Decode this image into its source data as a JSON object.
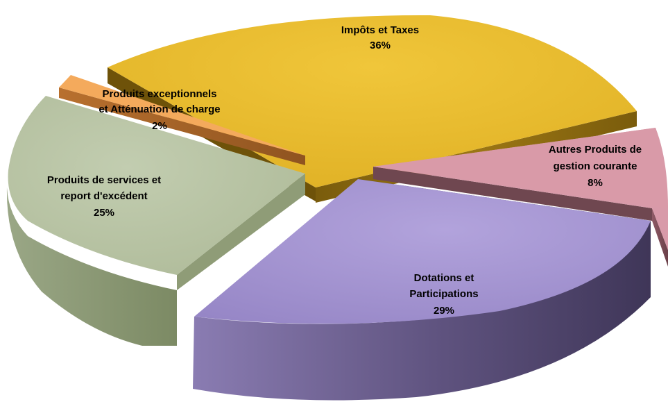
{
  "chart_data": {
    "type": "pie",
    "style": "3d-exploded",
    "slices": [
      {
        "label_lines": [
          "Impôts et Taxes"
        ],
        "percent_label": "36%",
        "value": 36,
        "color": "#e8bc2e",
        "side_color": "#8a6a12"
      },
      {
        "label_lines": [
          "Autres Produits de",
          "gestion courante"
        ],
        "percent_label": "8%",
        "value": 8,
        "color": "#d99aa8",
        "side_color": "#7a4e58"
      },
      {
        "label_lines": [
          "Dotations et",
          "Participations"
        ],
        "percent_label": "29%",
        "value": 29,
        "color": "#a694d2",
        "side_color": "#5a4f7a"
      },
      {
        "label_lines": [
          "Produits de services et",
          "report d'excédent"
        ],
        "percent_label": "25%",
        "value": 25,
        "color": "#b8c4a3",
        "side_color": "#87946f"
      },
      {
        "label_lines": [
          "Produits exceptionnels",
          "et Atténuation de charge"
        ],
        "percent_label": "2%",
        "value": 2,
        "color": "#f2a85a",
        "side_color": "#a8652a"
      }
    ]
  }
}
